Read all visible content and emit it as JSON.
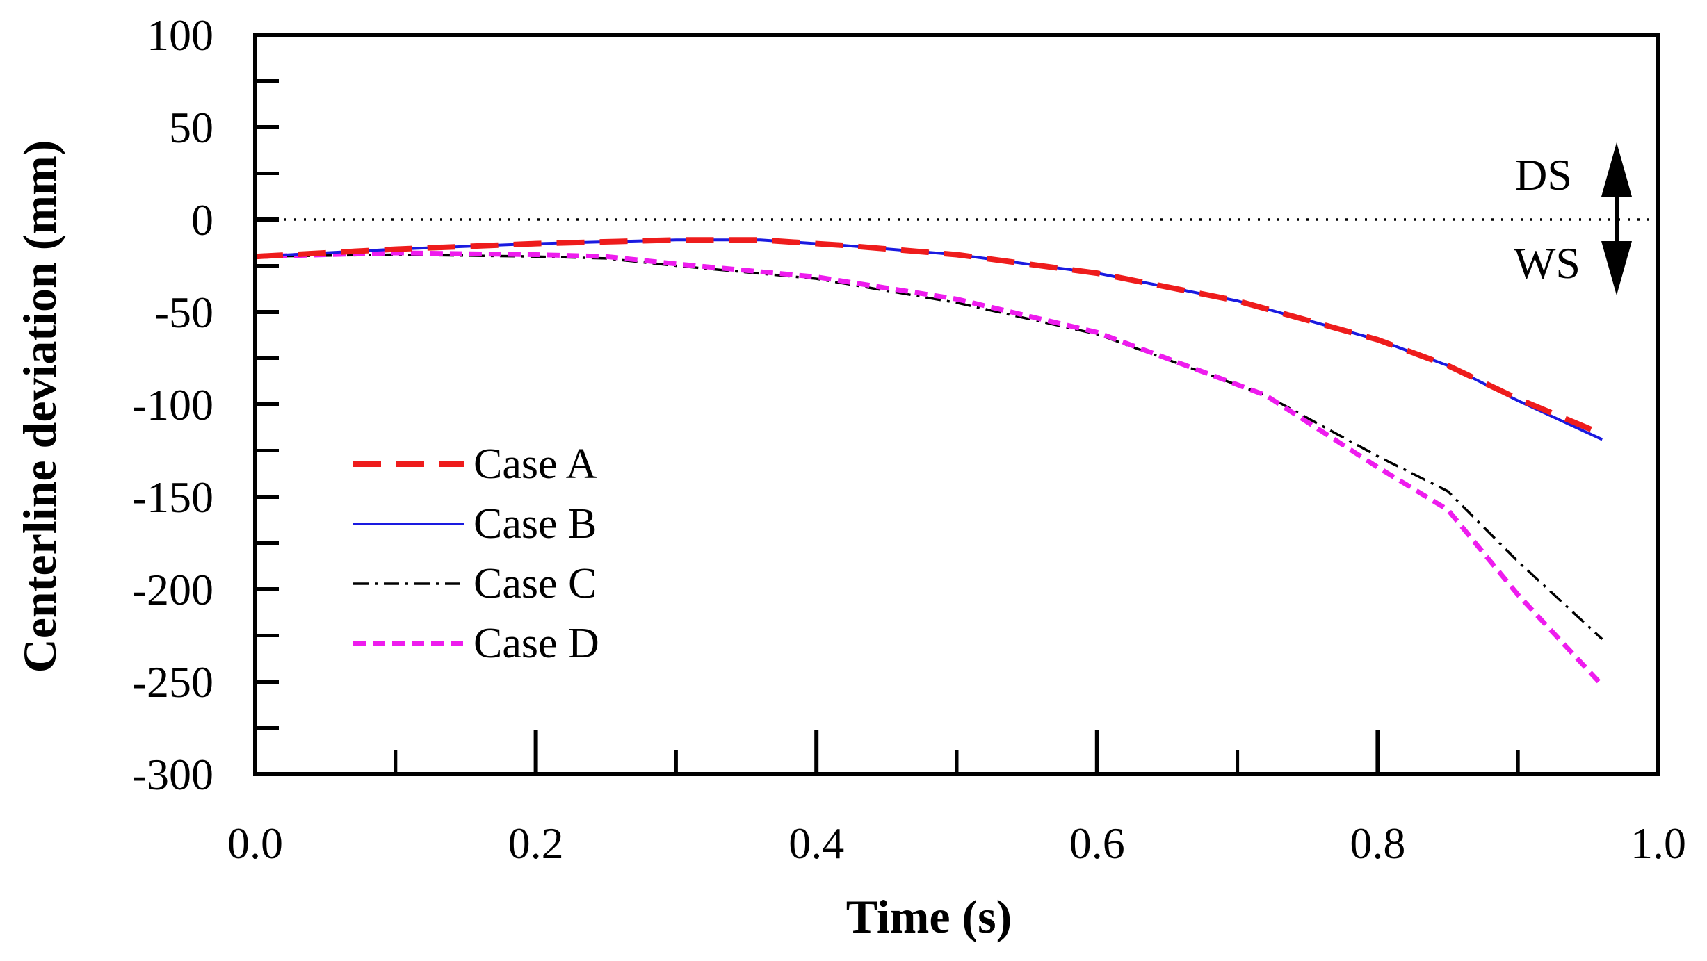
{
  "chart_data": {
    "type": "line",
    "title": "",
    "xlabel": "Time (s)",
    "ylabel": "Centerline deviation (mm)",
    "xlim": [
      0.0,
      1.0
    ],
    "ylim": [
      -300,
      100
    ],
    "xticks": [
      "0.0",
      "0.2",
      "0.4",
      "0.6",
      "0.8",
      "1.0"
    ],
    "yticks": [
      "100",
      "50",
      "0",
      "-50",
      "-100",
      "-150",
      "-200",
      "-250",
      "-300"
    ],
    "grid": false,
    "legend_position": "middle-left",
    "reference_line": {
      "y": 0,
      "style": "dotted"
    },
    "annotations": {
      "upper_label": "DS",
      "lower_label": "WS"
    },
    "series": [
      {
        "name": "Case A",
        "color": "#ee1c1c",
        "style": "dashed-long",
        "x": [
          0.0,
          0.1,
          0.2,
          0.3,
          0.36,
          0.42,
          0.5,
          0.6,
          0.7,
          0.8,
          0.85,
          0.9,
          0.96
        ],
        "y": [
          -20,
          -16,
          -13,
          -11,
          -11,
          -14,
          -19,
          -29,
          -44,
          -65,
          -79,
          -97,
          -116
        ]
      },
      {
        "name": "Case B",
        "color": "#1a1ae0",
        "style": "solid",
        "x": [
          0.0,
          0.1,
          0.2,
          0.3,
          0.36,
          0.42,
          0.5,
          0.6,
          0.7,
          0.8,
          0.85,
          0.9,
          0.96
        ],
        "y": [
          -20,
          -16,
          -13,
          -11,
          -11,
          -14,
          -19,
          -29,
          -44,
          -65,
          -79,
          -98,
          -119
        ]
      },
      {
        "name": "Case C",
        "color": "#000000",
        "style": "dash-dot",
        "x": [
          0.0,
          0.1,
          0.2,
          0.25,
          0.3,
          0.4,
          0.5,
          0.6,
          0.72,
          0.8,
          0.85,
          0.9,
          0.96
        ],
        "y": [
          -20,
          -19,
          -20,
          -21,
          -25,
          -32,
          -45,
          -62,
          -95,
          -128,
          -147,
          -185,
          -227
        ]
      },
      {
        "name": "Case D",
        "color": "#ee1cee",
        "style": "dashed-short",
        "x": [
          0.0,
          0.1,
          0.2,
          0.25,
          0.3,
          0.4,
          0.5,
          0.6,
          0.72,
          0.8,
          0.85,
          0.9,
          0.96
        ],
        "y": [
          -20,
          -18,
          -19,
          -20,
          -24,
          -31,
          -43,
          -61,
          -95,
          -134,
          -157,
          -203,
          -252
        ]
      }
    ]
  }
}
